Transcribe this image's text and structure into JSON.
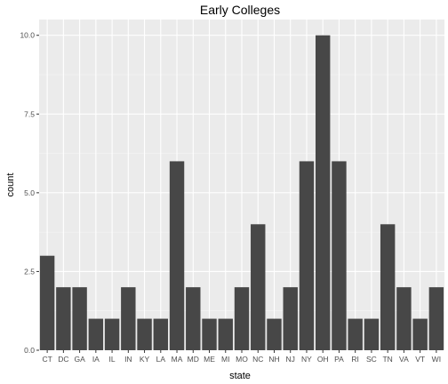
{
  "chart_data": {
    "type": "bar",
    "title": "Early Colleges",
    "xlabel": "state",
    "ylabel": "count",
    "categories": [
      "CT",
      "DC",
      "GA",
      "IA",
      "IL",
      "IN",
      "KY",
      "LA",
      "MA",
      "MD",
      "ME",
      "MI",
      "MO",
      "NC",
      "NH",
      "NJ",
      "NY",
      "OH",
      "PA",
      "RI",
      "SC",
      "TN",
      "VA",
      "VT",
      "WI"
    ],
    "values": [
      3,
      2,
      2,
      1,
      1,
      2,
      1,
      1,
      6,
      2,
      1,
      1,
      2,
      4,
      1,
      2,
      6,
      10,
      6,
      1,
      1,
      4,
      2,
      1,
      2
    ],
    "ylim": [
      0,
      10.5
    ],
    "yticks": [
      "0.0",
      "2.5",
      "5.0",
      "7.5",
      "10.0"
    ],
    "grid": true,
    "colors": {
      "bar": "#474747",
      "panel": "#ebebeb",
      "grid_major": "#ffffff",
      "tick_text": "#4d4d4d",
      "axis_title": "#000000"
    }
  }
}
